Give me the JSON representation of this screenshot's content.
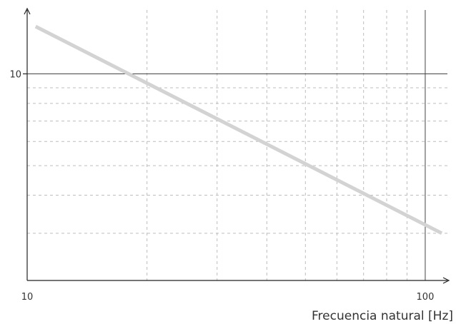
{
  "chart_data": {
    "type": "line",
    "title": "",
    "xlabel": "Frecuencia natural [Hz]",
    "ylabel": "",
    "x_scale": "log",
    "y_scale": "log",
    "xlim": [
      10,
      110
    ],
    "ylim": [
      2.1,
      16.2
    ],
    "x_ticks": [
      10,
      100
    ],
    "x_tick_labels": [
      "10",
      "100"
    ],
    "y_ticks": [
      10
    ],
    "y_tick_labels": [
      "10"
    ],
    "grid": true,
    "series": [
      {
        "x": [
          10.5,
          110
        ],
        "y": [
          14.3,
          3.0
        ],
        "color": "#d3d3d3"
      }
    ]
  }
}
